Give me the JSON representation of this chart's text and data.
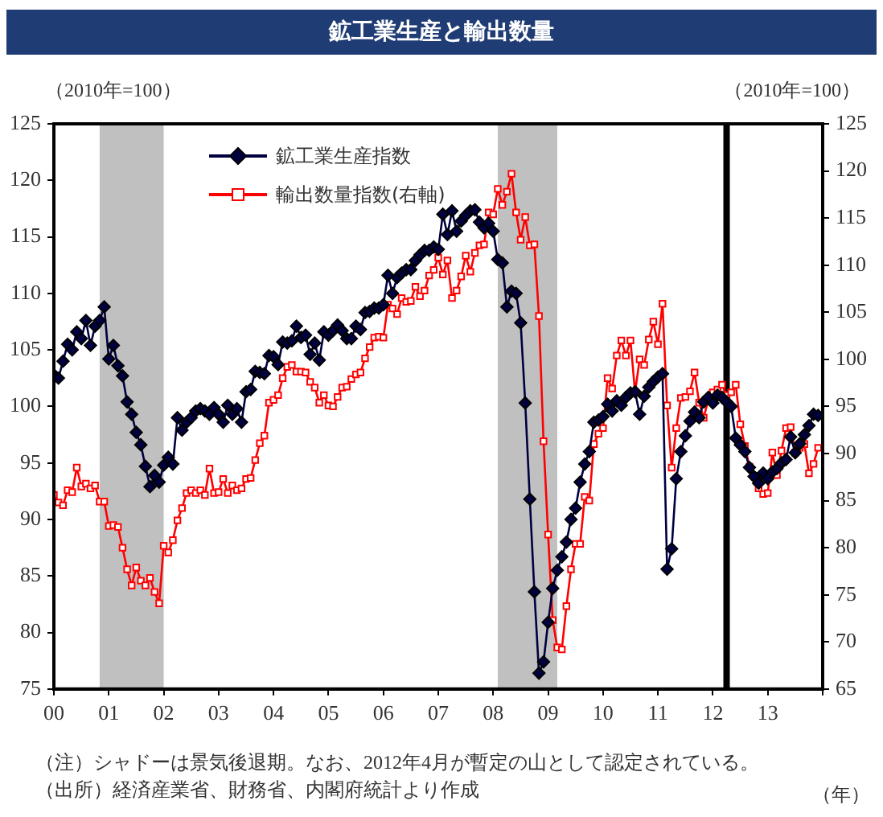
{
  "chart_data": {
    "type": "line",
    "title": "鉱工業生産と輸出数量",
    "ylabel": "（2010年=100）",
    "y2label": "（2010年=100）",
    "xlabel": "（年）",
    "annotations": [
      "（注）シャドーは景気後退期。なお、2012年4月が暫定の山として認定されている。",
      "（出所）経済産業省、財務省、内閣府統計より作成"
    ],
    "x": [
      "2000-01",
      "2000-02",
      "2000-03",
      "2000-04",
      "2000-05",
      "2000-06",
      "2000-07",
      "2000-08",
      "2000-09",
      "2000-10",
      "2000-11",
      "2000-12",
      "2001-01",
      "2001-02",
      "2001-03",
      "2001-04",
      "2001-05",
      "2001-06",
      "2001-07",
      "2001-08",
      "2001-09",
      "2001-10",
      "2001-11",
      "2001-12",
      "2002-01",
      "2002-02",
      "2002-03",
      "2002-04",
      "2002-05",
      "2002-06",
      "2002-07",
      "2002-08",
      "2002-09",
      "2002-10",
      "2002-11",
      "2002-12",
      "2003-01",
      "2003-02",
      "2003-03",
      "2003-04",
      "2003-05",
      "2003-06",
      "2003-07",
      "2003-08",
      "2003-09",
      "2003-10",
      "2003-11",
      "2003-12",
      "2004-01",
      "2004-02",
      "2004-03",
      "2004-04",
      "2004-05",
      "2004-06",
      "2004-07",
      "2004-08",
      "2004-09",
      "2004-10",
      "2004-11",
      "2004-12",
      "2005-01",
      "2005-02",
      "2005-03",
      "2005-04",
      "2005-05",
      "2005-06",
      "2005-07",
      "2005-08",
      "2005-09",
      "2005-10",
      "2005-11",
      "2005-12",
      "2006-01",
      "2006-02",
      "2006-03",
      "2006-04",
      "2006-05",
      "2006-06",
      "2006-07",
      "2006-08",
      "2006-09",
      "2006-10",
      "2006-11",
      "2006-12",
      "2007-01",
      "2007-02",
      "2007-03",
      "2007-04",
      "2007-05",
      "2007-06",
      "2007-07",
      "2007-08",
      "2007-09",
      "2007-10",
      "2007-11",
      "2007-12",
      "2008-01",
      "2008-02",
      "2008-03",
      "2008-04",
      "2008-05",
      "2008-06",
      "2008-07",
      "2008-08",
      "2008-09",
      "2008-10",
      "2008-11",
      "2008-12",
      "2009-01",
      "2009-02",
      "2009-03",
      "2009-04",
      "2009-05",
      "2009-06",
      "2009-07",
      "2009-08",
      "2009-09",
      "2009-10",
      "2009-11",
      "2009-12",
      "2010-01",
      "2010-02",
      "2010-03",
      "2010-04",
      "2010-05",
      "2010-06",
      "2010-07",
      "2010-08",
      "2010-09",
      "2010-10",
      "2010-11",
      "2010-12",
      "2011-01",
      "2011-02",
      "2011-03",
      "2011-04",
      "2011-05",
      "2011-06",
      "2011-07",
      "2011-08",
      "2011-09",
      "2011-10",
      "2011-11",
      "2011-12",
      "2012-01",
      "2012-02",
      "2012-03",
      "2012-04",
      "2012-05",
      "2012-06",
      "2012-07",
      "2012-08",
      "2012-09",
      "2012-10",
      "2012-11",
      "2012-12",
      "2013-01",
      "2013-02",
      "2013-03",
      "2013-04",
      "2013-05",
      "2013-06",
      "2013-07",
      "2013-08",
      "2013-09",
      "2013-10",
      "2013-11",
      "2013-12"
    ],
    "series": [
      {
        "name": "鉱工業生産指数",
        "color": "#000040",
        "marker": "diamond",
        "values": [
          102.8,
          102.5,
          104.0,
          105.5,
          105.0,
          106.6,
          106.0,
          107.6,
          105.4,
          107.1,
          107.6,
          108.8,
          104.2,
          105.4,
          103.6,
          102.7,
          100.4,
          99.3,
          97.7,
          96.6,
          94.7,
          92.9,
          93.9,
          93.3,
          94.8,
          95.5,
          94.9,
          99.0,
          97.9,
          98.6,
          99.0,
          99.6,
          99.8,
          99.6,
          99.3,
          99.9,
          99.3,
          98.6,
          100.1,
          99.3,
          99.8,
          98.6,
          101.3,
          101.5,
          103.1,
          103.0,
          102.9,
          104.5,
          104.4,
          103.7,
          105.7,
          105.6,
          105.8,
          107.1,
          106.1,
          106.3,
          104.6,
          105.6,
          104.1,
          106.6,
          106.3,
          106.7,
          107.2,
          106.7,
          106.0,
          106.0,
          107.1,
          106.8,
          108.3,
          108.4,
          108.7,
          108.7,
          109.0,
          111.6,
          110.0,
          111.4,
          111.8,
          112.1,
          112.1,
          112.9,
          113.4,
          113.8,
          113.8,
          114.1,
          113.9,
          117.0,
          115.2,
          117.3,
          115.5,
          116.4,
          116.9,
          117.3,
          117.4,
          116.3,
          115.8,
          116.2,
          115.5,
          113.0,
          112.7,
          108.8,
          110.2,
          110.0,
          107.4,
          100.3,
          91.8,
          83.6,
          76.4,
          77.4,
          80.9,
          83.9,
          85.5,
          86.7,
          88.0,
          90.0,
          91.0,
          93.3,
          94.9,
          96.0,
          98.6,
          98.8,
          99.1,
          100.2,
          99.6,
          100.5,
          100.1,
          100.8,
          101.2,
          101.3,
          99.3,
          100.9,
          101.7,
          102.2,
          102.6,
          102.9,
          85.6,
          87.4,
          93.6,
          96.0,
          97.4,
          98.7,
          99.5,
          99.0,
          100.4,
          100.8,
          100.3,
          101.0,
          100.8,
          100.4,
          100.0,
          97.2,
          96.6,
          96.0,
          94.6,
          93.8,
          93.2,
          94.1,
          93.6,
          94.2,
          94.5,
          95.0,
          95.3,
          97.3,
          95.9,
          96.7,
          97.5,
          98.3,
          99.3,
          99.2
        ]
      },
      {
        "name": "輸出数量指数(右軸)",
        "color": "#ff0000",
        "marker": "square",
        "axis": "y2",
        "values": [
          85.6,
          84.8,
          84.5,
          86.1,
          85.9,
          88.5,
          86.5,
          86.8,
          86.3,
          86.6,
          84.9,
          84.9,
          82.3,
          82.4,
          82.2,
          80.0,
          77.7,
          76.0,
          77.9,
          76.5,
          76.0,
          76.8,
          75.3,
          74.1,
          80.2,
          79.5,
          80.8,
          82.9,
          84.2,
          85.8,
          86.1,
          85.8,
          86.1,
          85.6,
          88.4,
          85.8,
          85.9,
          87.3,
          85.8,
          86.6,
          86.1,
          86.3,
          87.3,
          87.4,
          89.3,
          91.1,
          91.9,
          95.4,
          95.7,
          96.2,
          98.0,
          99.2,
          99.4,
          98.7,
          98.7,
          98.6,
          97.6,
          97.0,
          95.4,
          96.2,
          95.1,
          95.0,
          96.0,
          97.0,
          97.1,
          97.9,
          98.4,
          98.6,
          100.1,
          101.3,
          102.3,
          102.4,
          102.3,
          105.8,
          105.4,
          104.8,
          106.5,
          106.1,
          106.2,
          107.7,
          106.7,
          107.3,
          108.9,
          109.5,
          110.8,
          109.0,
          110.5,
          106.5,
          107.3,
          108.8,
          111.0,
          109.3,
          111.3,
          112.1,
          112.2,
          115.6,
          115.4,
          118.1,
          116.4,
          117.8,
          119.7,
          115.6,
          112.7,
          115.1,
          112.1,
          112.2,
          104.6,
          91.3,
          81.4,
          72.3,
          69.4,
          69.2,
          73.8,
          77.7,
          80.4,
          80.4,
          85.4,
          85.0,
          91.0,
          92.1,
          92.7,
          98.0,
          96.9,
          100.4,
          102.0,
          100.4,
          102.0,
          96.5,
          100.0,
          99.4,
          102.1,
          104.0,
          101.6,
          105.9,
          95.1,
          88.5,
          92.7,
          95.9,
          96.0,
          96.6,
          98.6,
          95.4,
          93.8,
          95.7,
          96.5,
          96.8,
          97.3,
          96.2,
          96.5,
          97.3,
          93.1,
          90.8,
          88.6,
          87.6,
          86.3,
          85.7,
          85.8,
          90.1,
          87.7,
          90.3,
          92.7,
          92.8,
          90.1,
          90.6,
          91.0,
          87.9,
          88.9,
          90.6
        ]
      }
    ],
    "xlim": [
      "2000",
      "2014"
    ],
    "xticks": [
      {
        "value": "2000",
        "label": "00"
      },
      {
        "value": "2001",
        "label": "01"
      },
      {
        "value": "2002",
        "label": "02"
      },
      {
        "value": "2003",
        "label": "03"
      },
      {
        "value": "2004",
        "label": "04"
      },
      {
        "value": "2005",
        "label": "05"
      },
      {
        "value": "2006",
        "label": "06"
      },
      {
        "value": "2007",
        "label": "07"
      },
      {
        "value": "2008",
        "label": "08"
      },
      {
        "value": "2009",
        "label": "09"
      },
      {
        "value": "2010",
        "label": "10"
      },
      {
        "value": "2011",
        "label": "11"
      },
      {
        "value": "2012",
        "label": "12"
      },
      {
        "value": "2013",
        "label": "13"
      },
      {
        "value": "2014",
        "label": null
      }
    ],
    "ylim": [
      75,
      125
    ],
    "yticks": [
      75,
      80,
      85,
      90,
      95,
      100,
      105,
      110,
      115,
      120,
      125
    ],
    "y2lim": [
      65,
      125
    ],
    "y2ticks": [
      65,
      70,
      75,
      80,
      85,
      90,
      95,
      100,
      105,
      110,
      115,
      120,
      125
    ],
    "bands": [
      {
        "axis": "x",
        "from": "2000-11",
        "to": "2002-01",
        "color": "#c0c0c0"
      },
      {
        "axis": "x",
        "from": "2008-02",
        "to": "2009-03",
        "color": "#c0c0c0"
      }
    ],
    "ref_lines": [
      {
        "axis": "x",
        "value": "2012-04",
        "color": "#000000"
      }
    ],
    "grid": false,
    "legend": "top left",
    "line_style": "solid"
  }
}
